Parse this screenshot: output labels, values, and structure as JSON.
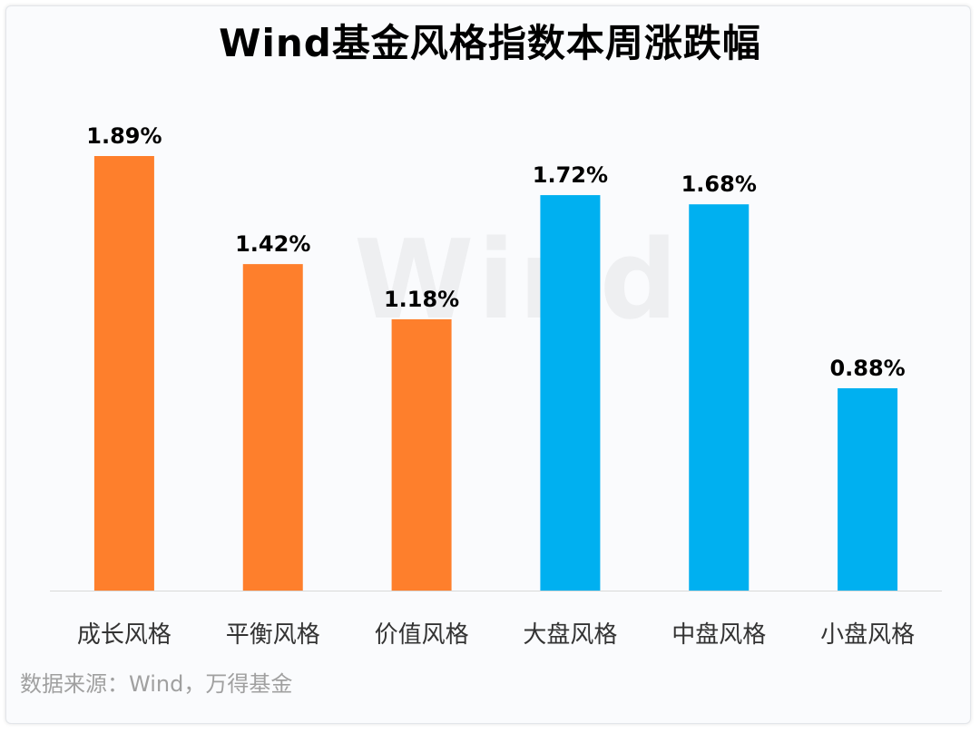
{
  "title": "Wind基金风格指数本周涨跌幅",
  "watermark": "Wind",
  "source": "数据来源：Wind，万得基金",
  "colors": {
    "orange": "#fe7f2c",
    "blue": "#00b0f0",
    "axis": "#d9d9d9",
    "label": "#000000",
    "category": "#333333"
  },
  "chart_data": {
    "type": "bar",
    "title": "Wind基金风格指数本周涨跌幅",
    "xlabel": "",
    "ylabel": "",
    "ylim": [
      0,
      1.89
    ],
    "grid": false,
    "categories": [
      "成长风格",
      "平衡风格",
      "价值风格",
      "大盘风格",
      "中盘风格",
      "小盘风格"
    ],
    "values": [
      1.89,
      1.42,
      1.18,
      1.72,
      1.68,
      0.88
    ],
    "value_labels": [
      "1.89%",
      "1.42%",
      "1.18%",
      "1.72%",
      "1.68%",
      "0.88%"
    ],
    "bar_colors": [
      "#fe7f2c",
      "#fe7f2c",
      "#fe7f2c",
      "#00b0f0",
      "#00b0f0",
      "#00b0f0"
    ]
  }
}
